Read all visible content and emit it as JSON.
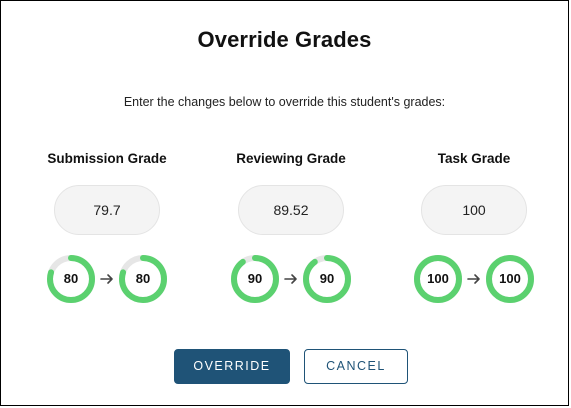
{
  "dialog": {
    "title": "Override Grades",
    "subtitle": "Enter the changes below to override this student's grades:"
  },
  "columns": [
    {
      "label": "Submission Grade",
      "input_value": "79.7",
      "from_score": {
        "label": "80",
        "percent": 80
      },
      "to_score": {
        "label": "80",
        "percent": 80
      }
    },
    {
      "label": "Reviewing Grade",
      "input_value": "89.52",
      "from_score": {
        "label": "90",
        "percent": 90
      },
      "to_score": {
        "label": "90",
        "percent": 90
      }
    },
    {
      "label": "Task Grade",
      "input_value": "100",
      "from_score": {
        "label": "100",
        "percent": 100
      },
      "to_score": {
        "label": "100",
        "percent": 100
      }
    }
  ],
  "buttons": {
    "override_label": "OVERRIDE",
    "cancel_label": "CANCEL"
  },
  "colors": {
    "ring_fill": "#5bd16f",
    "ring_track": "#e6e6e6",
    "primary": "#1f5377",
    "arrow": "#444444"
  },
  "icons": {
    "arrow": "arrow-right-icon"
  }
}
